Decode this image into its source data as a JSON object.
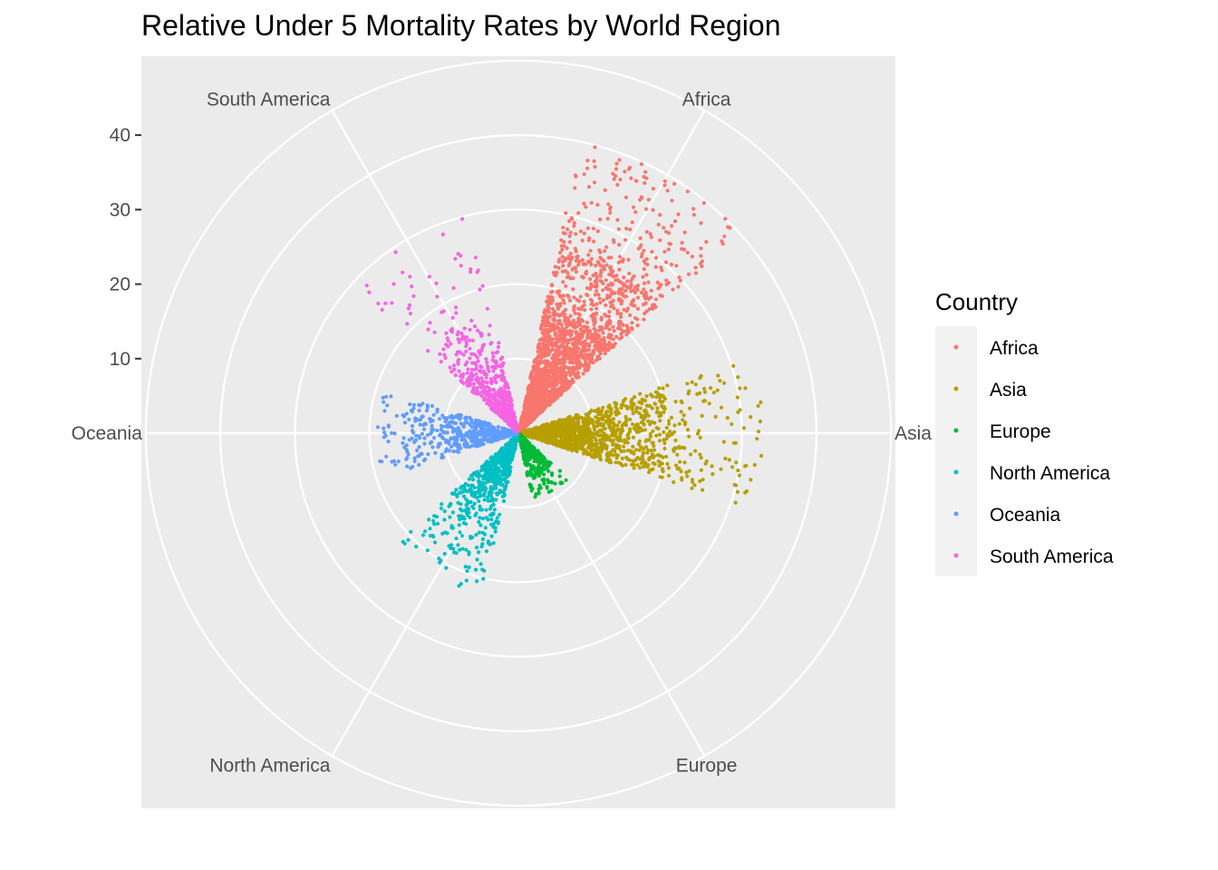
{
  "chart_data": {
    "type": "scatter",
    "coord": "polar",
    "title": "Relative Under 5 Mortality Rates by World Region",
    "xlabel": "",
    "ylabel": "",
    "theta_categories": [
      "Africa",
      "Asia",
      "Europe",
      "North America",
      "Oceania",
      "South America"
    ],
    "theta_ticks": [
      {
        "label": "Africa",
        "value": 0
      },
      {
        "label": "Asia",
        "value": 1
      },
      {
        "label": "Europe",
        "value": 2
      },
      {
        "label": "North America",
        "value": 3
      },
      {
        "label": "Oceania",
        "value": 4
      },
      {
        "label": "South America",
        "value": 5
      }
    ],
    "theta_range": [
      -0.5,
      5.5
    ],
    "r_range": [
      0,
      45
    ],
    "r_ticks": [
      {
        "label": "10",
        "value": 10
      },
      {
        "label": "20",
        "value": 20
      },
      {
        "label": "30",
        "value": 30
      },
      {
        "label": "40",
        "value": 40
      }
    ],
    "r_gridlines": [
      10,
      20,
      30,
      40,
      50
    ],
    "grid": true,
    "legend": {
      "title": "Country",
      "position": "right"
    },
    "series": [
      {
        "name": "Africa",
        "color": "#F8766D",
        "point_count": 2200,
        "jitter_width": 0.6,
        "r_distribution": {
          "median": 10,
          "q3": 17,
          "p90": 25,
          "max": 40
        }
      },
      {
        "name": "Asia",
        "color": "#B79F00",
        "point_count": 1300,
        "jitter_width": 0.6,
        "r_distribution": {
          "median": 8,
          "q3": 14,
          "p90": 20,
          "max": 33
        }
      },
      {
        "name": "Europe",
        "color": "#00BA38",
        "point_count": 500,
        "jitter_width": 0.6,
        "r_distribution": {
          "median": 2,
          "q3": 4,
          "p90": 6,
          "max": 9
        }
      },
      {
        "name": "North America",
        "color": "#00BFC4",
        "point_count": 700,
        "jitter_width": 0.6,
        "r_distribution": {
          "median": 6,
          "q3": 10,
          "p90": 15,
          "max": 22
        }
      },
      {
        "name": "Oceania",
        "color": "#619CFF",
        "point_count": 500,
        "jitter_width": 0.6,
        "r_distribution": {
          "median": 6,
          "q3": 10,
          "p90": 14,
          "max": 19
        }
      },
      {
        "name": "South America",
        "color": "#F564E3",
        "point_count": 550,
        "jitter_width": 0.6,
        "r_distribution": {
          "median": 6,
          "q3": 11,
          "p90": 16,
          "max": 30
        }
      }
    ]
  }
}
